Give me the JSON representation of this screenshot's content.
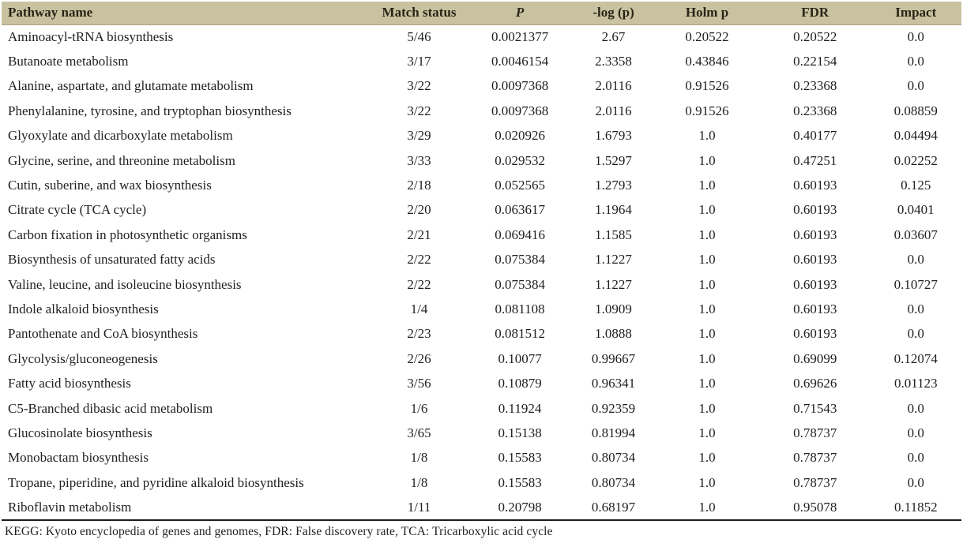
{
  "colors": {
    "header_bg": "#c9c2a1",
    "header_text": "#2a2416",
    "body_text": "#1f1f1f",
    "table_border": "#1b1b1b",
    "header_edge": "#a9a284"
  },
  "footnote": "KEGG: Kyoto encyclopedia of genes and genomes, FDR: False discovery rate, TCA: Tricarboxylic acid cycle",
  "table": {
    "columns": [
      {
        "key": "pathway-name",
        "label": "Pathway name"
      },
      {
        "key": "match-status",
        "label": "Match status"
      },
      {
        "key": "p-value",
        "label": "P"
      },
      {
        "key": "neg-log-p",
        "label": "-log (p)"
      },
      {
        "key": "holm-p",
        "label": "Holm p"
      },
      {
        "key": "fdr",
        "label": "FDR"
      },
      {
        "key": "impact",
        "label": "Impact"
      }
    ],
    "rows": [
      [
        "Aminoacyl-tRNA biosynthesis",
        "5/46",
        "0.0021377",
        "2.67",
        "0.20522",
        "0.20522",
        "0.0"
      ],
      [
        "Butanoate metabolism",
        "3/17",
        "0.0046154",
        "2.3358",
        "0.43846",
        "0.22154",
        "0.0"
      ],
      [
        "Alanine, aspartate, and glutamate metabolism",
        "3/22",
        "0.0097368",
        "2.0116",
        "0.91526",
        "0.23368",
        "0.0"
      ],
      [
        "Phenylalanine, tyrosine, and tryptophan biosynthesis",
        "3/22",
        "0.0097368",
        "2.0116",
        "0.91526",
        "0.23368",
        "0.08859"
      ],
      [
        "Glyoxylate and dicarboxylate metabolism",
        "3/29",
        "0.020926",
        "1.6793",
        "1.0",
        "0.40177",
        "0.04494"
      ],
      [
        "Glycine, serine, and threonine metabolism",
        "3/33",
        "0.029532",
        "1.5297",
        "1.0",
        "0.47251",
        "0.02252"
      ],
      [
        "Cutin, suberine, and wax biosynthesis",
        "2/18",
        "0.052565",
        "1.2793",
        "1.0",
        "0.60193",
        "0.125"
      ],
      [
        "Citrate cycle (TCA cycle)",
        "2/20",
        "0.063617",
        "1.1964",
        "1.0",
        "0.60193",
        "0.0401"
      ],
      [
        "Carbon fixation in photosynthetic organisms",
        "2/21",
        "0.069416",
        "1.1585",
        "1.0",
        "0.60193",
        "0.03607"
      ],
      [
        "Biosynthesis of unsaturated fatty acids",
        "2/22",
        "0.075384",
        "1.1227",
        "1.0",
        "0.60193",
        "0.0"
      ],
      [
        "Valine, leucine, and isoleucine biosynthesis",
        "2/22",
        "0.075384",
        "1.1227",
        "1.0",
        "0.60193",
        "0.10727"
      ],
      [
        "Indole alkaloid biosynthesis",
        "1/4",
        "0.081108",
        "1.0909",
        "1.0",
        "0.60193",
        "0.0"
      ],
      [
        "Pantothenate and CoA biosynthesis",
        "2/23",
        "0.081512",
        "1.0888",
        "1.0",
        "0.60193",
        "0.0"
      ],
      [
        "Glycolysis/gluconeogenesis",
        "2/26",
        "0.10077",
        "0.99667",
        "1.0",
        "0.69099",
        "0.12074"
      ],
      [
        "Fatty acid biosynthesis",
        "3/56",
        "0.10879",
        "0.96341",
        "1.0",
        "0.69626",
        "0.01123"
      ],
      [
        "C5-Branched dibasic acid metabolism",
        "1/6",
        "0.11924",
        "0.92359",
        "1.0",
        "0.71543",
        "0.0"
      ],
      [
        "Glucosinolate biosynthesis",
        "3/65",
        "0.15138",
        "0.81994",
        "1.0",
        "0.78737",
        "0.0"
      ],
      [
        "Monobactam biosynthesis",
        "1/8",
        "0.15583",
        "0.80734",
        "1.0",
        "0.78737",
        "0.0"
      ],
      [
        "Tropane, piperidine, and pyridine alkaloid biosynthesis",
        "1/8",
        "0.15583",
        "0.80734",
        "1.0",
        "0.78737",
        "0.0"
      ],
      [
        "Riboflavin metabolism",
        "1/11",
        "0.20798",
        "0.68197",
        "1.0",
        "0.95078",
        "0.11852"
      ]
    ]
  }
}
